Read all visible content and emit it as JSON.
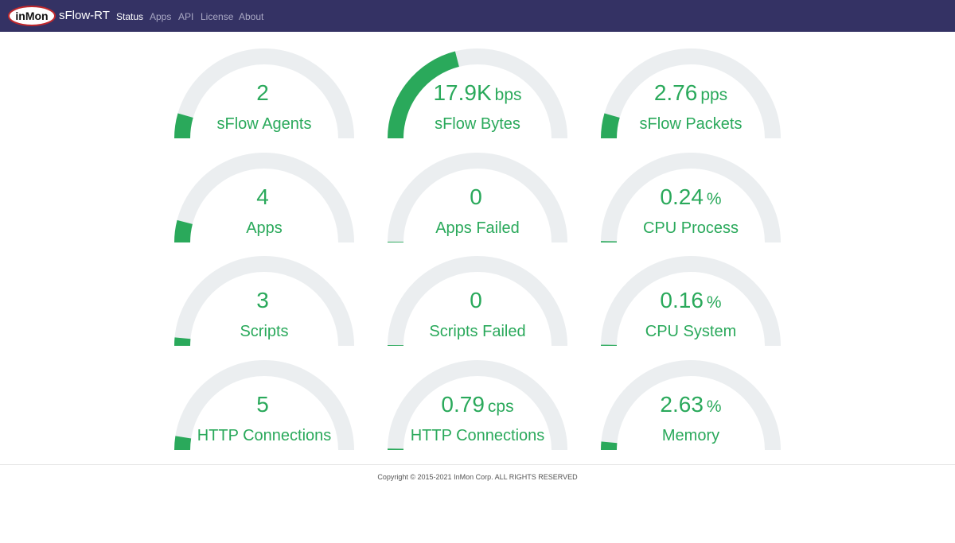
{
  "app": {
    "logo_text": "inMon",
    "title": "sFlow-RT"
  },
  "nav": {
    "items": [
      {
        "label": "Status",
        "active": true
      },
      {
        "label": "Apps",
        "active": false
      },
      {
        "label": "API",
        "active": false
      },
      {
        "label": "License",
        "active": false
      },
      {
        "label": "About",
        "active": false
      }
    ]
  },
  "colors": {
    "navbar": "#343264",
    "gauge_fill": "#2aa95b",
    "gauge_track": "#ebeef0",
    "text_green": "#2aa95b"
  },
  "gauges": [
    {
      "value": "2",
      "unit": "",
      "label": "sFlow Agents",
      "fraction": 0.09
    },
    {
      "value": "17.9K",
      "unit": "bps",
      "label": "sFlow Bytes",
      "fraction": 0.42
    },
    {
      "value": "2.76",
      "unit": "pps",
      "label": "sFlow Packets",
      "fraction": 0.09
    },
    {
      "value": "4",
      "unit": "",
      "label": "Apps",
      "fraction": 0.08
    },
    {
      "value": "0",
      "unit": "",
      "label": "Apps Failed",
      "fraction": 0.0
    },
    {
      "value": "0.24",
      "unit": "%",
      "label": "CPU Process",
      "fraction": 0.005
    },
    {
      "value": "3",
      "unit": "",
      "label": "Scripts",
      "fraction": 0.03
    },
    {
      "value": "0",
      "unit": "",
      "label": "Scripts Failed",
      "fraction": 0.0
    },
    {
      "value": "0.16",
      "unit": "%",
      "label": "CPU System",
      "fraction": 0.004
    },
    {
      "value": "5",
      "unit": "",
      "label": "HTTP Connections",
      "fraction": 0.05
    },
    {
      "value": "0.79",
      "unit": "cps",
      "label": "HTTP Connections",
      "fraction": 0.005
    },
    {
      "value": "2.63",
      "unit": "%",
      "label": "Memory",
      "fraction": 0.03
    }
  ],
  "footer": {
    "copyright": "Copyright © 2015-2021 InMon Corp. ALL RIGHTS RESERVED"
  }
}
